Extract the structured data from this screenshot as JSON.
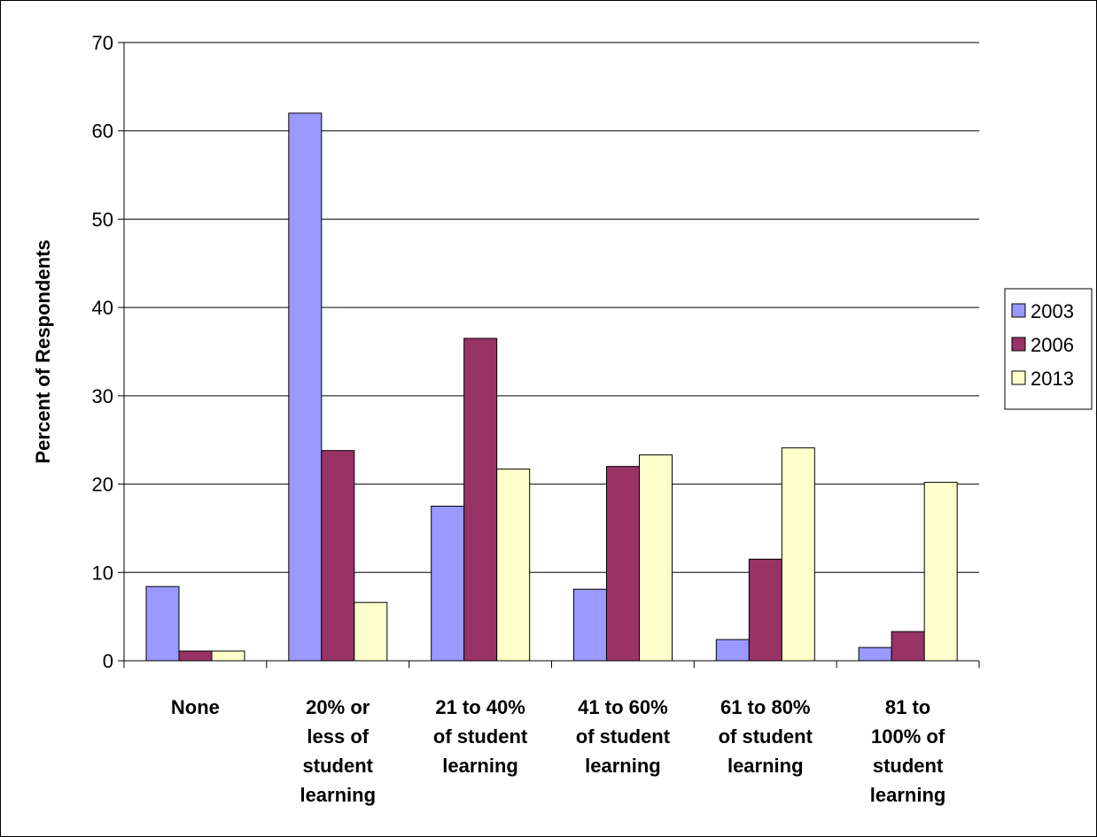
{
  "chart_data": {
    "type": "bar",
    "title": "",
    "xlabel": "",
    "ylabel": "Percent of Respondents",
    "ylim": [
      0,
      70
    ],
    "yticks": [
      0,
      10,
      20,
      30,
      40,
      50,
      60,
      70
    ],
    "grid": true,
    "legend": "right",
    "categories": [
      [
        "None"
      ],
      [
        "20% or",
        "less of",
        "student",
        "learning"
      ],
      [
        "21 to 40%",
        "of student",
        "learning"
      ],
      [
        "41 to 60%",
        "of student",
        "learning"
      ],
      [
        "61 to 80%",
        "of student",
        "learning"
      ],
      [
        "81 to",
        "100% of",
        "student",
        "learning"
      ]
    ],
    "series": [
      {
        "name": "2003",
        "color": "#9999FF",
        "values": [
          8.4,
          62.0,
          17.5,
          8.1,
          2.4,
          1.5
        ]
      },
      {
        "name": "2006",
        "color": "#993366",
        "values": [
          1.1,
          23.8,
          36.5,
          22.0,
          11.5,
          3.3
        ]
      },
      {
        "name": "2013",
        "color": "#FFFFCC",
        "values": [
          1.1,
          6.6,
          21.7,
          23.3,
          24.1,
          20.2
        ]
      }
    ]
  }
}
